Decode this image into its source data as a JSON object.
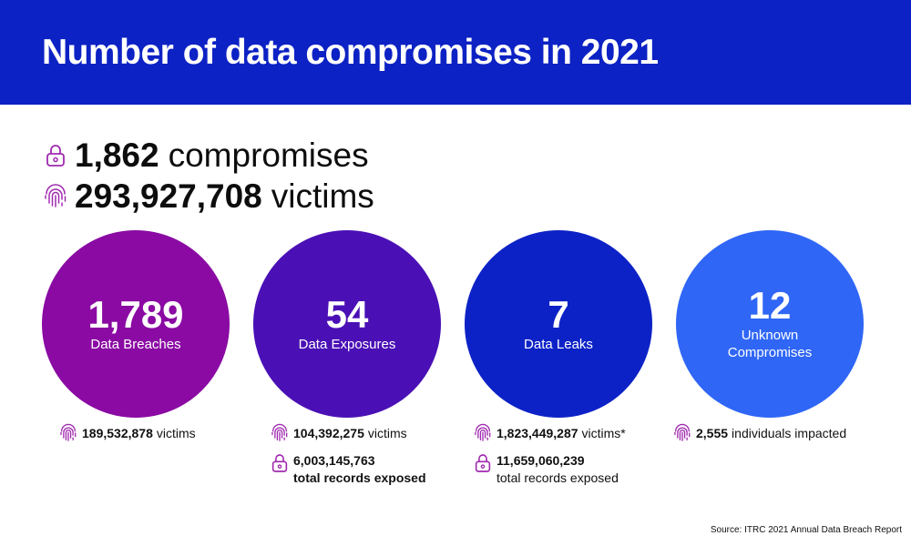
{
  "header": {
    "title": "Number of data compromises in 2021",
    "color": "#0c22c4"
  },
  "summary": {
    "compromises": {
      "value": "1,862",
      "text": "compromises",
      "icon": "lock-icon"
    },
    "victims": {
      "value": "293,927,708",
      "text": "victims",
      "icon": "fingerprint-icon"
    }
  },
  "icon_color": "#a02ab0",
  "categories": [
    {
      "value": "1,789",
      "label": "Data Breaches",
      "color": "#8a0aa3",
      "victims_value": "189,532,878",
      "victims_text": "victims"
    },
    {
      "value": "54",
      "label": "Data Exposures",
      "color": "#4a10b5",
      "victims_value": "104,392,275",
      "victims_text": "victims",
      "records_value": "6,003,145,763",
      "records_text": "total records exposed"
    },
    {
      "value": "7",
      "label": "Data Leaks",
      "color": "#0d22c6",
      "victims_value": "1,823,449,287",
      "victims_text": "victims*",
      "records_value": "11,659,060,239",
      "records_text": "total records exposed"
    },
    {
      "value": "12",
      "label_line1": "Unknown",
      "label_line2": "Compromises",
      "color": "#2f66f5",
      "victims_value": "2,555",
      "victims_text": "individuals impacted"
    }
  ],
  "source": "Source: ITRC 2021 Annual Data Breach Report"
}
